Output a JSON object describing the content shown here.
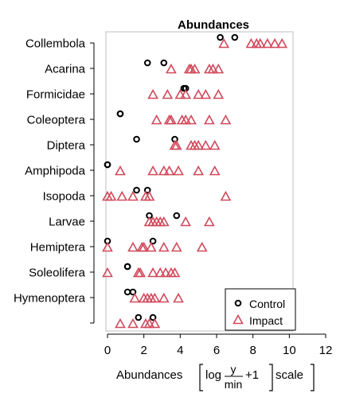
{
  "chart_data": {
    "type": "scatter",
    "title": "Abundances",
    "xlabel": {
      "prefix": "Abundances",
      "formula": {
        "fn": "log",
        "numerator": "y",
        "denominator": "min",
        "suffix": "+1",
        "tail": "scale"
      }
    },
    "xlim": [
      0,
      12
    ],
    "xticks": [
      0,
      2,
      4,
      6,
      8,
      10,
      12
    ],
    "categories": [
      "Collembola",
      "Acarina",
      "Formicidae",
      "Coleoptera",
      "Diptera",
      "Amphipoda",
      "Isopoda",
      "Larvae",
      "Hemiptera",
      "Soleolifera",
      "Hymenoptera",
      ""
    ],
    "legend": {
      "position": "bottom-right"
    },
    "colors": {
      "control": "#000000",
      "impact": "#d1495b"
    },
    "series": [
      {
        "name": "Control",
        "marker": "circle",
        "points": [
          {
            "category": "Collembola",
            "x": [
              6.2,
              7.0
            ]
          },
          {
            "category": "Acarina",
            "x": [
              2.2,
              3.1
            ]
          },
          {
            "category": "Formicidae",
            "x": [
              4.2,
              4.3
            ]
          },
          {
            "category": "Coleoptera",
            "x": [
              0.7,
              0.7
            ]
          },
          {
            "category": "Diptera",
            "x": [
              1.6,
              3.7
            ]
          },
          {
            "category": "Amphipoda",
            "x": [
              0.0,
              0.0
            ]
          },
          {
            "category": "Isopoda",
            "x": [
              1.6,
              2.2
            ]
          },
          {
            "category": "Larvae",
            "x": [
              2.3,
              3.8
            ]
          },
          {
            "category": "Hemiptera",
            "x": [
              0.0,
              2.5
            ]
          },
          {
            "category": "Soleolifera",
            "x": [
              1.1,
              1.1
            ]
          },
          {
            "category": "Hymenoptera",
            "x": [
              1.1,
              1.4
            ]
          },
          {
            "category": "",
            "x": [
              1.7,
              2.5
            ]
          }
        ]
      },
      {
        "name": "Impact",
        "marker": "triangle",
        "points": [
          {
            "category": "Collembola",
            "x": [
              6.4,
              7.9,
              8.2,
              8.4,
              8.8,
              9.2,
              9.6
            ]
          },
          {
            "category": "Acarina",
            "x": [
              3.5,
              4.5,
              4.6,
              4.8,
              5.6,
              5.8,
              6.1
            ]
          },
          {
            "category": "Formicidae",
            "x": [
              2.5,
              3.3,
              4.0,
              4.3,
              5.0,
              5.4,
              6.1
            ]
          },
          {
            "category": "Coleoptera",
            "x": [
              2.7,
              3.4,
              3.5,
              4.1,
              4.3,
              4.6,
              5.6,
              6.5
            ]
          },
          {
            "category": "Diptera",
            "x": [
              3.7,
              3.8,
              4.6,
              4.8,
              5.0,
              5.4,
              5.9
            ]
          },
          {
            "category": "Amphipoda",
            "x": [
              0.7,
              2.5,
              3.1,
              3.4,
              3.9,
              5.0,
              5.9
            ]
          },
          {
            "category": "Isopoda",
            "x": [
              0.0,
              0.2,
              0.8,
              1.4,
              2.1,
              2.3,
              6.5
            ]
          },
          {
            "category": "Larvae",
            "x": [
              2.3,
              2.5,
              2.7,
              2.9,
              3.1,
              4.3,
              5.6
            ]
          },
          {
            "category": "Hemiptera",
            "x": [
              0.0,
              1.4,
              1.9,
              2.0,
              2.4,
              3.1,
              3.8,
              5.2
            ]
          },
          {
            "category": "Soleolifera",
            "x": [
              0.0,
              1.7,
              1.8,
              2.5,
              2.9,
              3.2,
              3.5,
              3.7
            ]
          },
          {
            "category": "Hymenoptera",
            "x": [
              1.5,
              2.0,
              2.2,
              2.4,
              2.6,
              3.1,
              3.9
            ]
          },
          {
            "category": "",
            "x": [
              0.7,
              1.4,
              2.1,
              2.3,
              2.6
            ]
          }
        ]
      }
    ]
  }
}
